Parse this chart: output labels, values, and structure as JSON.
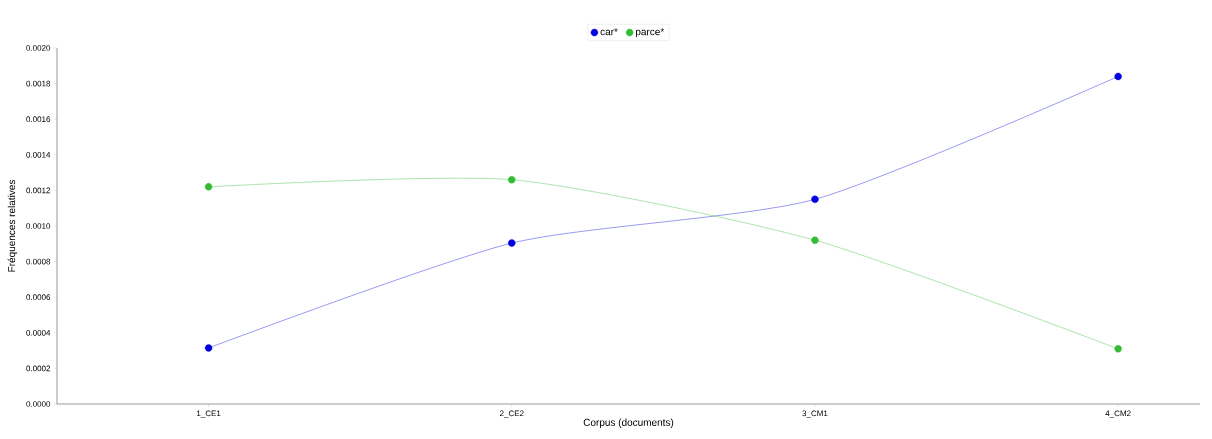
{
  "chart_data": {
    "type": "line",
    "xlabel": "Corpus (documents)",
    "ylabel": "Fréquences relatives",
    "categories": [
      "1_CE1",
      "2_CE2",
      "3_CM1",
      "4_CM2"
    ],
    "series": [
      {
        "name": "car*",
        "color": "#0000e0",
        "values": [
          0.000315,
          0.000904,
          0.00115,
          0.00184
        ]
      },
      {
        "name": "parce*",
        "color": "#33bb33",
        "values": [
          0.00122,
          0.00126,
          0.00092,
          0.00031
        ]
      }
    ],
    "ylim": [
      0,
      0.002
    ],
    "yticks": [
      {
        "value": 0,
        "label": "0.0000"
      },
      {
        "value": 0.0002,
        "label": "0.0002"
      },
      {
        "value": 0.0004,
        "label": "0.0004"
      },
      {
        "value": 0.0006,
        "label": "0.0006"
      },
      {
        "value": 0.0008,
        "label": "0.0008"
      },
      {
        "value": 0.001,
        "label": "0.0010"
      },
      {
        "value": 0.0012,
        "label": "0.0012"
      },
      {
        "value": 0.0014,
        "label": "0.0014"
      },
      {
        "value": 0.0016,
        "label": "0.0016"
      },
      {
        "value": 0.0018,
        "label": "0.0018"
      },
      {
        "value": 0.002,
        "label": "0.0020"
      }
    ],
    "grid": false,
    "legend": "top",
    "marker": "circle",
    "line_style": "solid"
  }
}
